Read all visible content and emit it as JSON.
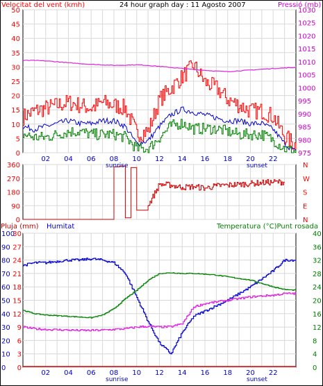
{
  "header": {
    "left_title": "Velocitat del vent (kmh)",
    "center_title": "24 hour graph day : 11 Agosto 2007",
    "right_title": "Pressió (mb)"
  },
  "colors": {
    "wind": "#ff0000",
    "wind_avg": "#0000cc",
    "wind_low": "#008000",
    "pressure": "#dd22dd",
    "direction": "#cc0000",
    "humidity": "#0000cc",
    "temperature": "#008000",
    "dewpoint": "#dd22dd",
    "rain": "#cc0000",
    "axis_left": "#ff0000",
    "axis_right": "#cc00cc",
    "axis_humidity": "#0000cc",
    "axis_temp": "#008000"
  },
  "x_ticks": [
    "02",
    "04",
    "06",
    "08",
    "10",
    "12",
    "14",
    "16",
    "18",
    "20",
    "22"
  ],
  "sunrise_label": "sunrise",
  "sunset_label": "sunset",
  "chart_data": [
    {
      "type": "line",
      "title": "24 hour graph day : 11 Agosto 2007",
      "ylabel": "Velocitat del vent (kmh)",
      "y2label": "Pressió (mb)",
      "ylim": [
        0,
        50
      ],
      "y2lim": [
        975,
        1030
      ],
      "y_ticks": [
        "0",
        "5",
        "10",
        "15",
        "20",
        "25",
        "30",
        "35",
        "40",
        "45",
        "50"
      ],
      "y2_ticks": [
        "975",
        "980",
        "985",
        "990",
        "995",
        "1000",
        "1005",
        "1010",
        "1015",
        "1020",
        "1025",
        "1030"
      ],
      "x": [
        0,
        1,
        2,
        3,
        4,
        5,
        6,
        7,
        8,
        9,
        10,
        11,
        12,
        13,
        14,
        15,
        16,
        17,
        18,
        19,
        20,
        21,
        22,
        23,
        24
      ],
      "series": [
        {
          "name": "Velocitat del vent (kmh)",
          "role": "gust",
          "values": [
            12,
            14,
            15,
            16,
            17,
            16,
            15,
            17,
            16,
            15,
            6,
            7,
            18,
            22,
            26,
            30,
            24,
            22,
            18,
            16,
            14,
            14,
            12,
            5,
            2
          ]
        },
        {
          "name": "avg",
          "role": "average",
          "values": [
            9,
            8,
            9,
            10,
            11,
            10,
            10,
            11,
            11,
            9,
            3,
            4,
            9,
            13,
            15,
            14,
            13,
            12,
            11,
            11,
            10,
            10,
            8,
            3,
            0
          ]
        },
        {
          "name": "low",
          "role": "lull",
          "values": [
            6,
            5,
            5,
            6,
            7,
            7,
            6,
            6,
            6,
            5,
            1,
            1,
            5,
            9,
            10,
            8,
            8,
            8,
            7,
            6,
            6,
            6,
            4,
            1,
            0
          ]
        },
        {
          "name": "Pressió (mb)",
          "axis": "right",
          "values": [
            1010.5,
            1010.5,
            1010.3,
            1010,
            1009.6,
            1009.3,
            1009,
            1008.8,
            1008.6,
            1008.7,
            1008.8,
            1008.6,
            1008.2,
            1007.8,
            1007.4,
            1007,
            1006.7,
            1006.4,
            1006.2,
            1006.5,
            1006.8,
            1007.1,
            1007.4,
            1007.6,
            1007.8
          ]
        }
      ]
    },
    {
      "type": "line",
      "ylim": [
        0,
        360
      ],
      "y_ticks": [
        "0",
        "90",
        "180",
        "270",
        "360"
      ],
      "y2_labels": [
        "N",
        "W",
        "S",
        "E",
        "N"
      ],
      "x": [
        0,
        1,
        2,
        3,
        4,
        5,
        6,
        7,
        8,
        8.5,
        9,
        9.5,
        10,
        11,
        12,
        13,
        14,
        15,
        16,
        17,
        18,
        19,
        20,
        21,
        22,
        23
      ],
      "series": [
        {
          "name": "direction",
          "values": [
            0,
            0,
            0,
            0,
            0,
            0,
            0,
            0,
            345,
            350,
            10,
            340,
            60,
            90,
            230,
            225,
            210,
            215,
            205,
            220,
            225,
            230,
            235,
            240,
            245,
            245
          ]
        }
      ]
    },
    {
      "type": "line",
      "ylabel": "Pluja (mm)",
      "ylim": [
        0,
        100
      ],
      "y_ticks": [
        "0",
        "10",
        "20",
        "30",
        "40",
        "50",
        "60",
        "70",
        "80",
        "90",
        "100"
      ],
      "y_ticks_2": [
        "0",
        "3",
        "6",
        "9",
        "12",
        "15",
        "18",
        "21",
        "24",
        "27",
        "30"
      ],
      "y2label": "Temperatura (°C)Punt rosada",
      "y2lim": [
        0,
        40
      ],
      "y2_ticks": [
        "0",
        "4",
        "8",
        "12",
        "16",
        "20",
        "24",
        "28",
        "32",
        "36",
        "40"
      ],
      "humidity_label": "Humitat",
      "x": [
        0,
        1,
        2,
        3,
        4,
        5,
        6,
        7,
        8,
        9,
        10,
        11,
        12,
        13,
        14,
        15,
        16,
        17,
        18,
        19,
        20,
        21,
        22,
        23,
        24
      ],
      "series": [
        {
          "name": "Humitat",
          "values": [
            76,
            78,
            78,
            79,
            80,
            80,
            81,
            80,
            78,
            70,
            52,
            34,
            18,
            10,
            26,
            38,
            42,
            46,
            50,
            55,
            60,
            66,
            72,
            80,
            80
          ]
        },
        {
          "name": "Temperatura (°C)",
          "axis": "right",
          "values": [
            17,
            16,
            15.6,
            15.4,
            15.2,
            15,
            14.8,
            15.6,
            17.5,
            20.5,
            23,
            26,
            28,
            28.2,
            28,
            28,
            27.8,
            27.5,
            27,
            26.5,
            26,
            25,
            24,
            23.2,
            23
          ]
        },
        {
          "name": "Punt rosada",
          "axis": "right",
          "values": [
            12,
            11.5,
            11.3,
            11.2,
            11.1,
            11,
            11,
            11.1,
            11.3,
            11.5,
            12,
            12.2,
            12,
            12.1,
            13,
            18,
            19,
            19.5,
            20,
            20.5,
            21,
            21.3,
            21.5,
            22,
            22
          ]
        },
        {
          "name": "Pluja (mm)",
          "values": [
            0,
            0,
            0,
            0,
            0,
            0,
            0,
            0,
            0,
            0,
            0,
            0,
            0,
            0,
            0,
            0,
            0,
            0,
            0,
            0,
            0,
            0,
            0,
            0,
            0
          ]
        }
      ]
    }
  ]
}
